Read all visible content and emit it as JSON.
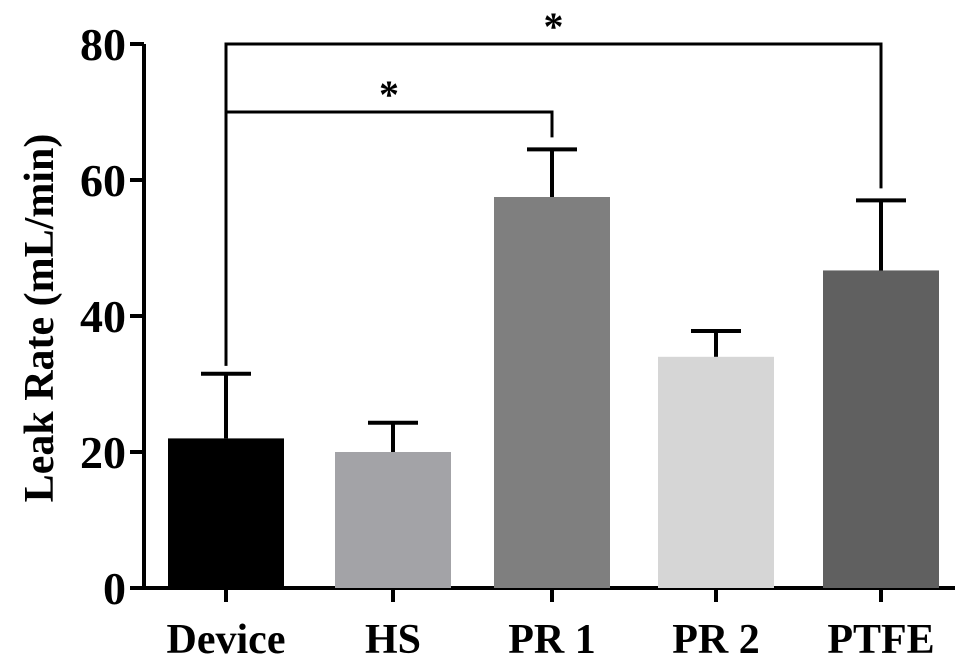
{
  "chart_data": {
    "type": "bar",
    "title": "",
    "xlabel": "",
    "ylabel": "Leak Rate (mL/min)",
    "ylim": [
      0,
      80
    ],
    "yticks": [
      0,
      20,
      40,
      60,
      80
    ],
    "ytick_labels": [
      "0",
      "20",
      "40",
      "60",
      "80"
    ],
    "grid": false,
    "categories": [
      "Device",
      "HS",
      "PR 1",
      "PR 2",
      "PTFE"
    ],
    "values": [
      22,
      20,
      57.5,
      34,
      46.7
    ],
    "errors": [
      9.5,
      4.3,
      7,
      3.8,
      10.3
    ],
    "colors": [
      "#000000",
      "#a3a3a7",
      "#7f7f7f",
      "#d6d6d6",
      "#606060"
    ],
    "significance": [
      {
        "from": "Device",
        "to": "PR 1",
        "label": "*",
        "y": 70
      },
      {
        "from": "Device",
        "to": "PTFE",
        "label": "*",
        "y": 80
      }
    ]
  }
}
